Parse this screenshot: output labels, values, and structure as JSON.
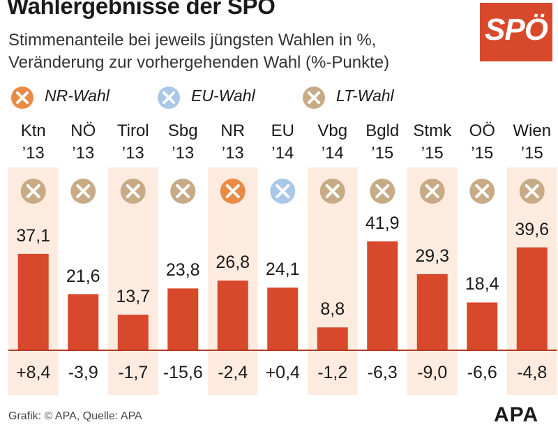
{
  "title": "Wahlergebnisse der SPÖ",
  "subtitle_line1": "Stimmenanteile bei jeweils jüngsten Wahlen in %,",
  "subtitle_line2": "Veränderung zur vorhergehenden Wahl (%-Punkte)",
  "logo_text": "SPÖ",
  "legend": [
    {
      "label": "NR-Wahl",
      "color": "#e98a45",
      "icon": "x-circle-icon"
    },
    {
      "label": "EU-Wahl",
      "color": "#a9c8e8",
      "icon": "x-circle-icon"
    },
    {
      "label": "LT-Wahl",
      "color": "#c8ab86",
      "icon": "x-circle-icon"
    }
  ],
  "colors": {
    "bar": "#d8482b",
    "column_band": "#fdebdf",
    "baseline": "#b23a22"
  },
  "source": "Grafik: © APA, Quelle: APA",
  "apa_logo": "APA",
  "chart_data": {
    "type": "bar",
    "title": "Wahlergebnisse der SPÖ",
    "categories": [
      "Ktn",
      "NÖ",
      "Tirol",
      "Sbg",
      "NR",
      "EU",
      "Vbg",
      "Bgld",
      "Stmk",
      "OÖ",
      "Wien"
    ],
    "years": [
      "’13",
      "’13",
      "’13",
      "’13",
      "’13",
      "’14",
      "’14",
      "’15",
      "’15",
      "’15",
      "’15"
    ],
    "election_types": [
      "LT",
      "LT",
      "LT",
      "LT",
      "NR",
      "EU",
      "LT",
      "LT",
      "LT",
      "LT",
      "LT"
    ],
    "values": [
      37.1,
      21.6,
      13.7,
      23.8,
      26.8,
      24.1,
      8.8,
      41.9,
      29.3,
      18.4,
      39.6
    ],
    "value_labels": [
      "37,1",
      "21,6",
      "13,7",
      "23,8",
      "26,8",
      "24,1",
      "8,8",
      "41,9",
      "29,3",
      "18,4",
      "39,6"
    ],
    "change_labels": [
      "+8,4",
      "-3,9",
      "-1,7",
      "-15,6",
      "-2,4",
      "+0,4",
      "-1,2",
      "-6,3",
      "-9,0",
      "-6,6",
      "-4,8"
    ],
    "ylim": [
      0,
      41.9
    ],
    "grid": false,
    "legend_position": "top-left"
  }
}
